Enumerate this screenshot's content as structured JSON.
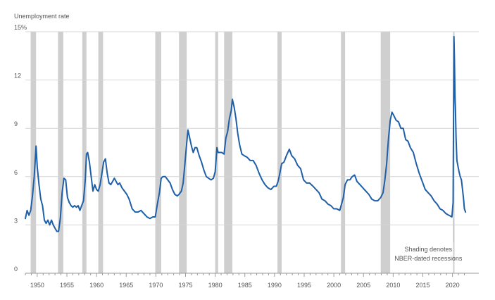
{
  "chart_data": {
    "type": "line",
    "ylabel": "Unemployment rate",
    "xlim": [
      1948,
      2022.3
    ],
    "ylim": [
      0,
      15
    ],
    "y_ticks": [
      {
        "value": 0,
        "label": "0"
      },
      {
        "value": 3,
        "label": "3"
      },
      {
        "value": 6,
        "label": "6"
      },
      {
        "value": 9,
        "label": "9"
      },
      {
        "value": 12,
        "label": "12"
      },
      {
        "value": 15,
        "label": "15%"
      }
    ],
    "x_ticks": [
      {
        "value": 1950,
        "label": "1950"
      },
      {
        "value": 1955,
        "label": "1955"
      },
      {
        "value": 1960,
        "label": "1960"
      },
      {
        "value": 1965,
        "label": "1965"
      },
      {
        "value": 1970,
        "label": "1970"
      },
      {
        "value": 1975,
        "label": "1975"
      },
      {
        "value": 1980,
        "label": "1980"
      },
      {
        "value": 1985,
        "label": "1985"
      },
      {
        "value": 1990,
        "label": "1990"
      },
      {
        "value": 1995,
        "label": "1995"
      },
      {
        "value": 2000,
        "label": "2000"
      },
      {
        "value": 2005,
        "label": "2005"
      },
      {
        "value": 2010,
        "label": "2010"
      },
      {
        "value": 2015,
        "label": "2015"
      },
      {
        "value": 2020,
        "label": "2020"
      }
    ],
    "grid": "horizontal",
    "recessions": [
      [
        1948.9,
        1949.8
      ],
      [
        1953.5,
        1954.4
      ],
      [
        1957.6,
        1958.3
      ],
      [
        1960.3,
        1961.1
      ],
      [
        1969.9,
        1970.9
      ],
      [
        1973.9,
        1975.2
      ],
      [
        1980.0,
        1980.5
      ],
      [
        1981.5,
        1982.9
      ],
      [
        1990.5,
        1991.2
      ],
      [
        2001.2,
        2001.9
      ],
      [
        2007.9,
        2009.5
      ],
      [
        2020.1,
        2020.3
      ]
    ],
    "annotation": {
      "lines": [
        "Shading denotes",
        "NBER-dated recessions"
      ],
      "x": 2020.2
    },
    "series": [
      {
        "x": [
          1948.0,
          1948.3,
          1948.6,
          1948.9,
          1949.2,
          1949.5,
          1949.8,
          1950.0,
          1950.3,
          1950.6,
          1950.9,
          1951.2,
          1951.5,
          1951.8,
          1952.1,
          1952.4,
          1952.7,
          1953.0,
          1953.3,
          1953.6,
          1953.9,
          1954.2,
          1954.5,
          1954.8,
          1955.1,
          1955.4,
          1955.7,
          1956.0,
          1956.3,
          1956.6,
          1956.9,
          1957.2,
          1957.5,
          1957.8,
          1958.1,
          1958.3,
          1958.5,
          1958.8,
          1959.1,
          1959.4,
          1959.7,
          1960.0,
          1960.3,
          1960.6,
          1960.9,
          1961.2,
          1961.5,
          1961.8,
          1962.1,
          1962.4,
          1962.7,
          1963.0,
          1963.3,
          1963.6,
          1963.9,
          1964.3,
          1964.7,
          1965.1,
          1965.5,
          1966.0,
          1966.5,
          1967.0,
          1967.5,
          1968.0,
          1968.5,
          1969.0,
          1969.5,
          1969.9,
          1970.3,
          1970.6,
          1970.9,
          1971.2,
          1971.6,
          1972.0,
          1972.4,
          1972.8,
          1973.2,
          1973.6,
          1973.9,
          1974.3,
          1974.6,
          1974.9,
          1975.2,
          1975.4,
          1975.7,
          1976.0,
          1976.3,
          1976.6,
          1976.9,
          1977.3,
          1977.7,
          1978.1,
          1978.5,
          1978.9,
          1979.3,
          1979.7,
          1980.0,
          1980.3,
          1980.5,
          1980.8,
          1981.1,
          1981.5,
          1981.8,
          1982.1,
          1982.4,
          1982.7,
          1982.9,
          1983.2,
          1983.5,
          1983.8,
          1984.1,
          1984.5,
          1984.9,
          1985.4,
          1985.9,
          1986.4,
          1986.9,
          1987.4,
          1987.9,
          1988.4,
          1988.9,
          1989.4,
          1989.9,
          1990.3,
          1990.6,
          1990.9,
          1991.2,
          1991.6,
          1992.0,
          1992.5,
          1992.9,
          1993.4,
          1993.9,
          1994.4,
          1994.9,
          1995.4,
          1995.9,
          1996.5,
          1997.0,
          1997.5,
          1998.0,
          1998.5,
          1999.0,
          1999.5,
          2000.0,
          2000.5,
          2001.0,
          2001.3,
          2001.6,
          2001.9,
          2002.3,
          2002.7,
          2003.1,
          2003.5,
          2003.9,
          2004.4,
          2004.9,
          2005.4,
          2005.9,
          2006.4,
          2006.9,
          2007.4,
          2007.9,
          2008.3,
          2008.6,
          2008.9,
          2009.2,
          2009.5,
          2009.8,
          2010.1,
          2010.5,
          2010.9,
          2011.3,
          2011.7,
          2012.1,
          2012.5,
          2012.9,
          2013.4,
          2013.9,
          2014.4,
          2014.9,
          2015.4,
          2015.9,
          2016.4,
          2016.9,
          2017.4,
          2017.9,
          2018.4,
          2018.9,
          2019.4,
          2019.9,
          2020.1,
          2020.25,
          2020.33,
          2020.42,
          2020.5,
          2020.6,
          2020.75,
          2020.9,
          2021.1,
          2021.3,
          2021.5,
          2021.7,
          2021.9,
          2022.0,
          2022.2
        ],
        "y": [
          3.4,
          3.9,
          3.6,
          3.9,
          4.8,
          6.0,
          7.9,
          6.6,
          5.5,
          4.6,
          4.2,
          3.3,
          3.1,
          3.3,
          3.0,
          3.3,
          3.0,
          2.8,
          2.6,
          2.6,
          3.4,
          5.0,
          5.9,
          5.8,
          4.7,
          4.4,
          4.2,
          4.1,
          4.2,
          4.1,
          4.2,
          3.9,
          4.2,
          4.5,
          5.8,
          7.4,
          7.5,
          6.9,
          6.0,
          5.1,
          5.5,
          5.2,
          5.1,
          5.5,
          6.2,
          6.9,
          7.1,
          6.2,
          5.6,
          5.5,
          5.7,
          5.9,
          5.7,
          5.5,
          5.6,
          5.3,
          5.1,
          4.9,
          4.6,
          4.0,
          3.8,
          3.8,
          3.9,
          3.7,
          3.5,
          3.4,
          3.5,
          3.5,
          4.4,
          5.0,
          5.9,
          6.0,
          6.0,
          5.8,
          5.6,
          5.2,
          4.9,
          4.8,
          4.9,
          5.1,
          5.6,
          6.8,
          8.1,
          8.9,
          8.4,
          7.9,
          7.5,
          7.8,
          7.8,
          7.3,
          6.9,
          6.4,
          6.0,
          5.9,
          5.8,
          5.9,
          6.3,
          7.8,
          7.5,
          7.5,
          7.5,
          7.4,
          8.4,
          8.8,
          9.6,
          10.1,
          10.8,
          10.3,
          9.6,
          8.7,
          8.0,
          7.4,
          7.3,
          7.2,
          7.0,
          7.0,
          6.7,
          6.2,
          5.8,
          5.5,
          5.3,
          5.2,
          5.4,
          5.4,
          5.7,
          6.2,
          6.8,
          6.9,
          7.3,
          7.7,
          7.3,
          7.1,
          6.7,
          6.5,
          5.8,
          5.6,
          5.6,
          5.4,
          5.2,
          5.0,
          4.6,
          4.5,
          4.3,
          4.2,
          4.0,
          4.0,
          3.9,
          4.3,
          4.7,
          5.5,
          5.8,
          5.8,
          6.0,
          6.1,
          5.7,
          5.5,
          5.3,
          5.1,
          4.9,
          4.6,
          4.5,
          4.5,
          4.7,
          5.0,
          5.8,
          6.8,
          8.3,
          9.5,
          10.0,
          9.8,
          9.5,
          9.4,
          9.0,
          9.0,
          8.3,
          8.2,
          7.8,
          7.5,
          6.8,
          6.2,
          5.7,
          5.2,
          5.0,
          4.8,
          4.5,
          4.3,
          4.0,
          3.9,
          3.7,
          3.6,
          3.5,
          4.4,
          14.7,
          13.3,
          11.0,
          10.2,
          8.4,
          7.0,
          6.7,
          6.3,
          6.0,
          5.8,
          5.2,
          4.5,
          4.0,
          3.8
        ]
      }
    ]
  }
}
